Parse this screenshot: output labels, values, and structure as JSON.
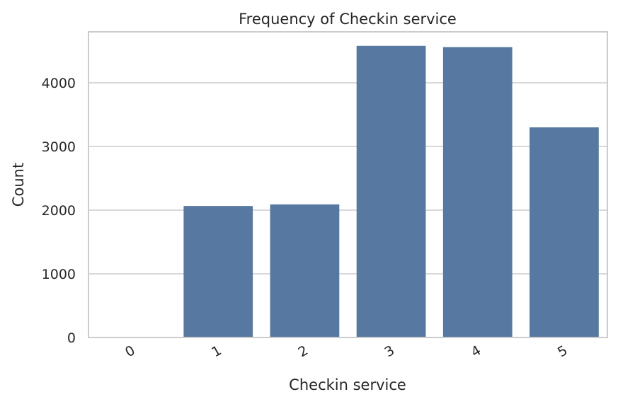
{
  "chart_data": {
    "type": "bar",
    "title": "Frequency of Checkin service",
    "xlabel": "Checkin service",
    "ylabel": "Count",
    "categories": [
      "0",
      "1",
      "2",
      "3",
      "4",
      "5"
    ],
    "values": [
      1,
      2065,
      2090,
      4580,
      4560,
      3300
    ],
    "ylim": [
      0,
      4800
    ],
    "yticks": [
      0,
      1000,
      2000,
      3000,
      4000
    ],
    "grid": true,
    "bar_color": "#5778a0",
    "grid_color": "#cccccc"
  }
}
